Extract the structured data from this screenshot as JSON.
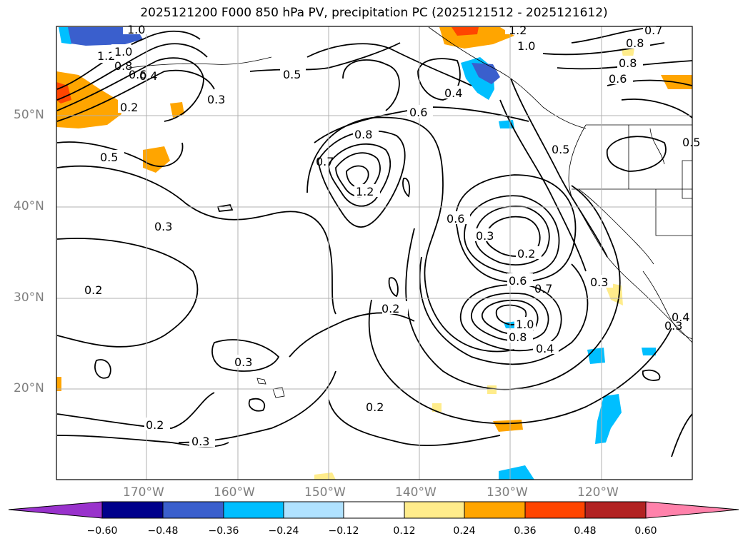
{
  "title": "2025121200 F000 850 hPa PV, precipitation PC (2025121512 - 2025121612)",
  "lat_labels": [
    "50°N",
    "40°N",
    "30°N",
    "20°N"
  ],
  "lon_labels": [
    "170°W",
    "160°W",
    "150°W",
    "140°W",
    "130°W",
    "120°W"
  ],
  "colorbar": {
    "ticks": [
      "−0.60",
      "−0.48",
      "−0.36",
      "−0.24",
      "−0.12",
      "0.12",
      "0.24",
      "0.36",
      "0.48",
      "0.60"
    ],
    "colors": [
      "#9932cc",
      "#00008b",
      "#3a5fcd",
      "#00bfff",
      "#b0e2ff",
      "#ffffff",
      "#ffec8b",
      "#ffa500",
      "#ff4500",
      "#b22222",
      "#ff82ab"
    ]
  },
  "contour_labels": [
    "1.0",
    "1.2",
    "1.0",
    "0.8",
    "0.6",
    "0.4",
    "0.2",
    "0.5",
    "0.3",
    "0.5",
    "0.3",
    "0.2",
    "0.3",
    "0.2",
    "0.3",
    "0.2",
    "0.6",
    "0.8",
    "0.7",
    "1.2",
    "0.6",
    "0.3",
    "0.2",
    "0.6",
    "0.7",
    "1.0",
    "0.8",
    "0.4",
    "0.3",
    "0.2",
    "0.4",
    "1.2",
    "1.0",
    "0.7",
    "0.8",
    "0.8",
    "0.6",
    "0.5",
    "0.3",
    "0.4",
    "0.5"
  ]
}
